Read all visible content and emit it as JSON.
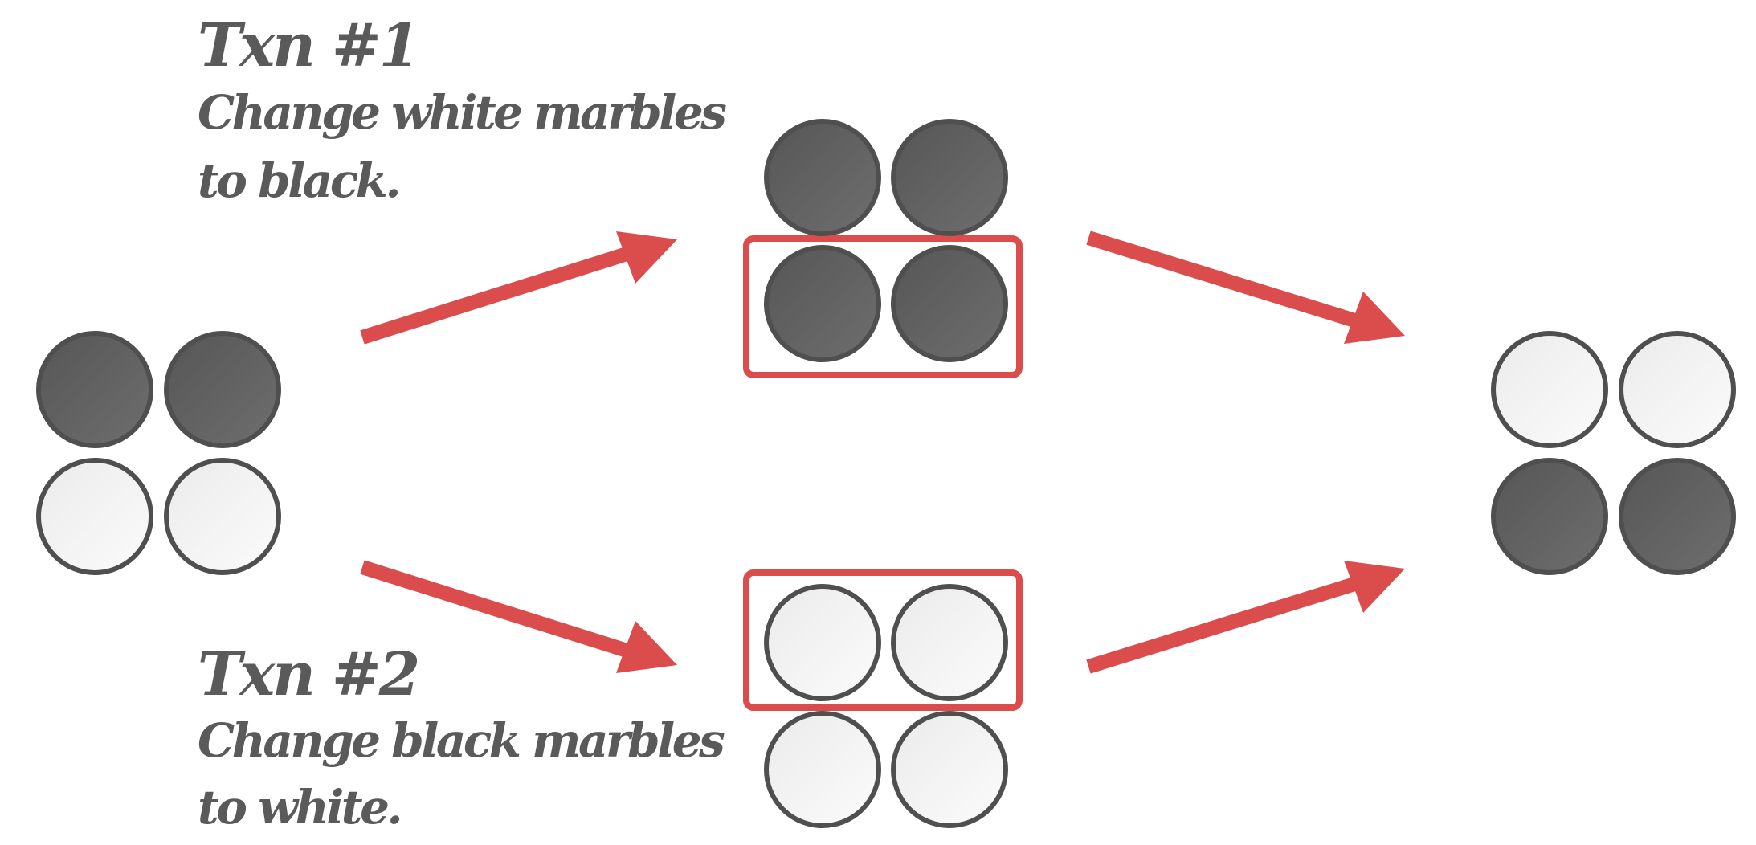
{
  "colors": {
    "black_marble": "#5e5e5e",
    "white_marble": "#f6f6f6",
    "marble_outline": "#4f4f4f",
    "accent": "#db4d4d",
    "text": "#5a5a5a"
  },
  "txn1": {
    "title": "Txn #1",
    "description_lines": [
      "Change white marbles",
      "to black."
    ]
  },
  "txn2": {
    "title": "Txn #2",
    "description_lines": [
      "Change black marbles",
      "to white."
    ]
  },
  "states": {
    "initial": [
      "black",
      "black",
      "white",
      "white"
    ],
    "after_txn1": [
      "black",
      "black",
      "black",
      "black"
    ],
    "after_txn2": [
      "white",
      "white",
      "white",
      "white"
    ],
    "final": [
      "white",
      "white",
      "black",
      "black"
    ]
  }
}
